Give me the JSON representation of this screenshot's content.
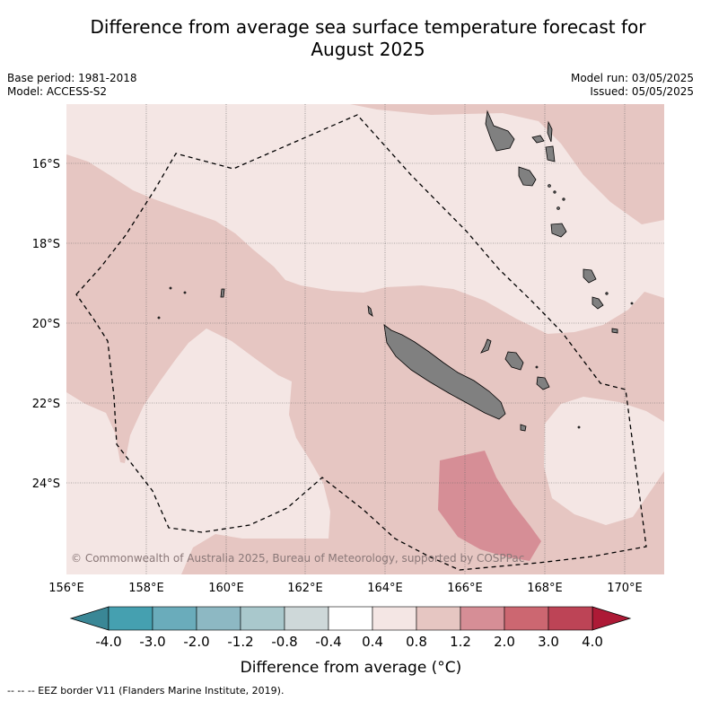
{
  "title_line1": "Difference from average sea surface temperature forecast for",
  "title_line2": "August 2025",
  "base_period": "Base period: 1981-2018",
  "model": "Model: ACCESS-S2",
  "model_run": "Model run: 03/05/2025",
  "issued": "Issued: 05/05/2025",
  "copyright": "© Commonwealth of Australia 2025, Bureau of Meteorology, supported by COSPPac",
  "lon_labels": [
    "156°E",
    "158°E",
    "160°E",
    "162°E",
    "164°E",
    "166°E",
    "168°E",
    "170°E"
  ],
  "lat_labels": [
    "16°S",
    "18°S",
    "20°S",
    "22°S",
    "24°S"
  ],
  "colorbar": {
    "ticks": [
      "-4.0",
      "-3.0",
      "-2.0",
      "-1.2",
      "-0.8",
      "-0.4",
      "0.4",
      "0.8",
      "1.2",
      "2.0",
      "3.0",
      "4.0"
    ],
    "colors": [
      "#45a0b0",
      "#6aacbb",
      "#8db8c3",
      "#a9c8cc",
      "#ced8d9",
      "#ffffff",
      "#f4e6e4",
      "#e6c6c2",
      "#d68e96",
      "#cc6771",
      "#bd4456"
    ],
    "under_color": "#3a8796",
    "over_color": "#ad1a36",
    "label": "Difference from average (°C)"
  },
  "legend_note": "-- -- -- EEZ border V11 (Flanders Marine Institute, 2019)."
}
